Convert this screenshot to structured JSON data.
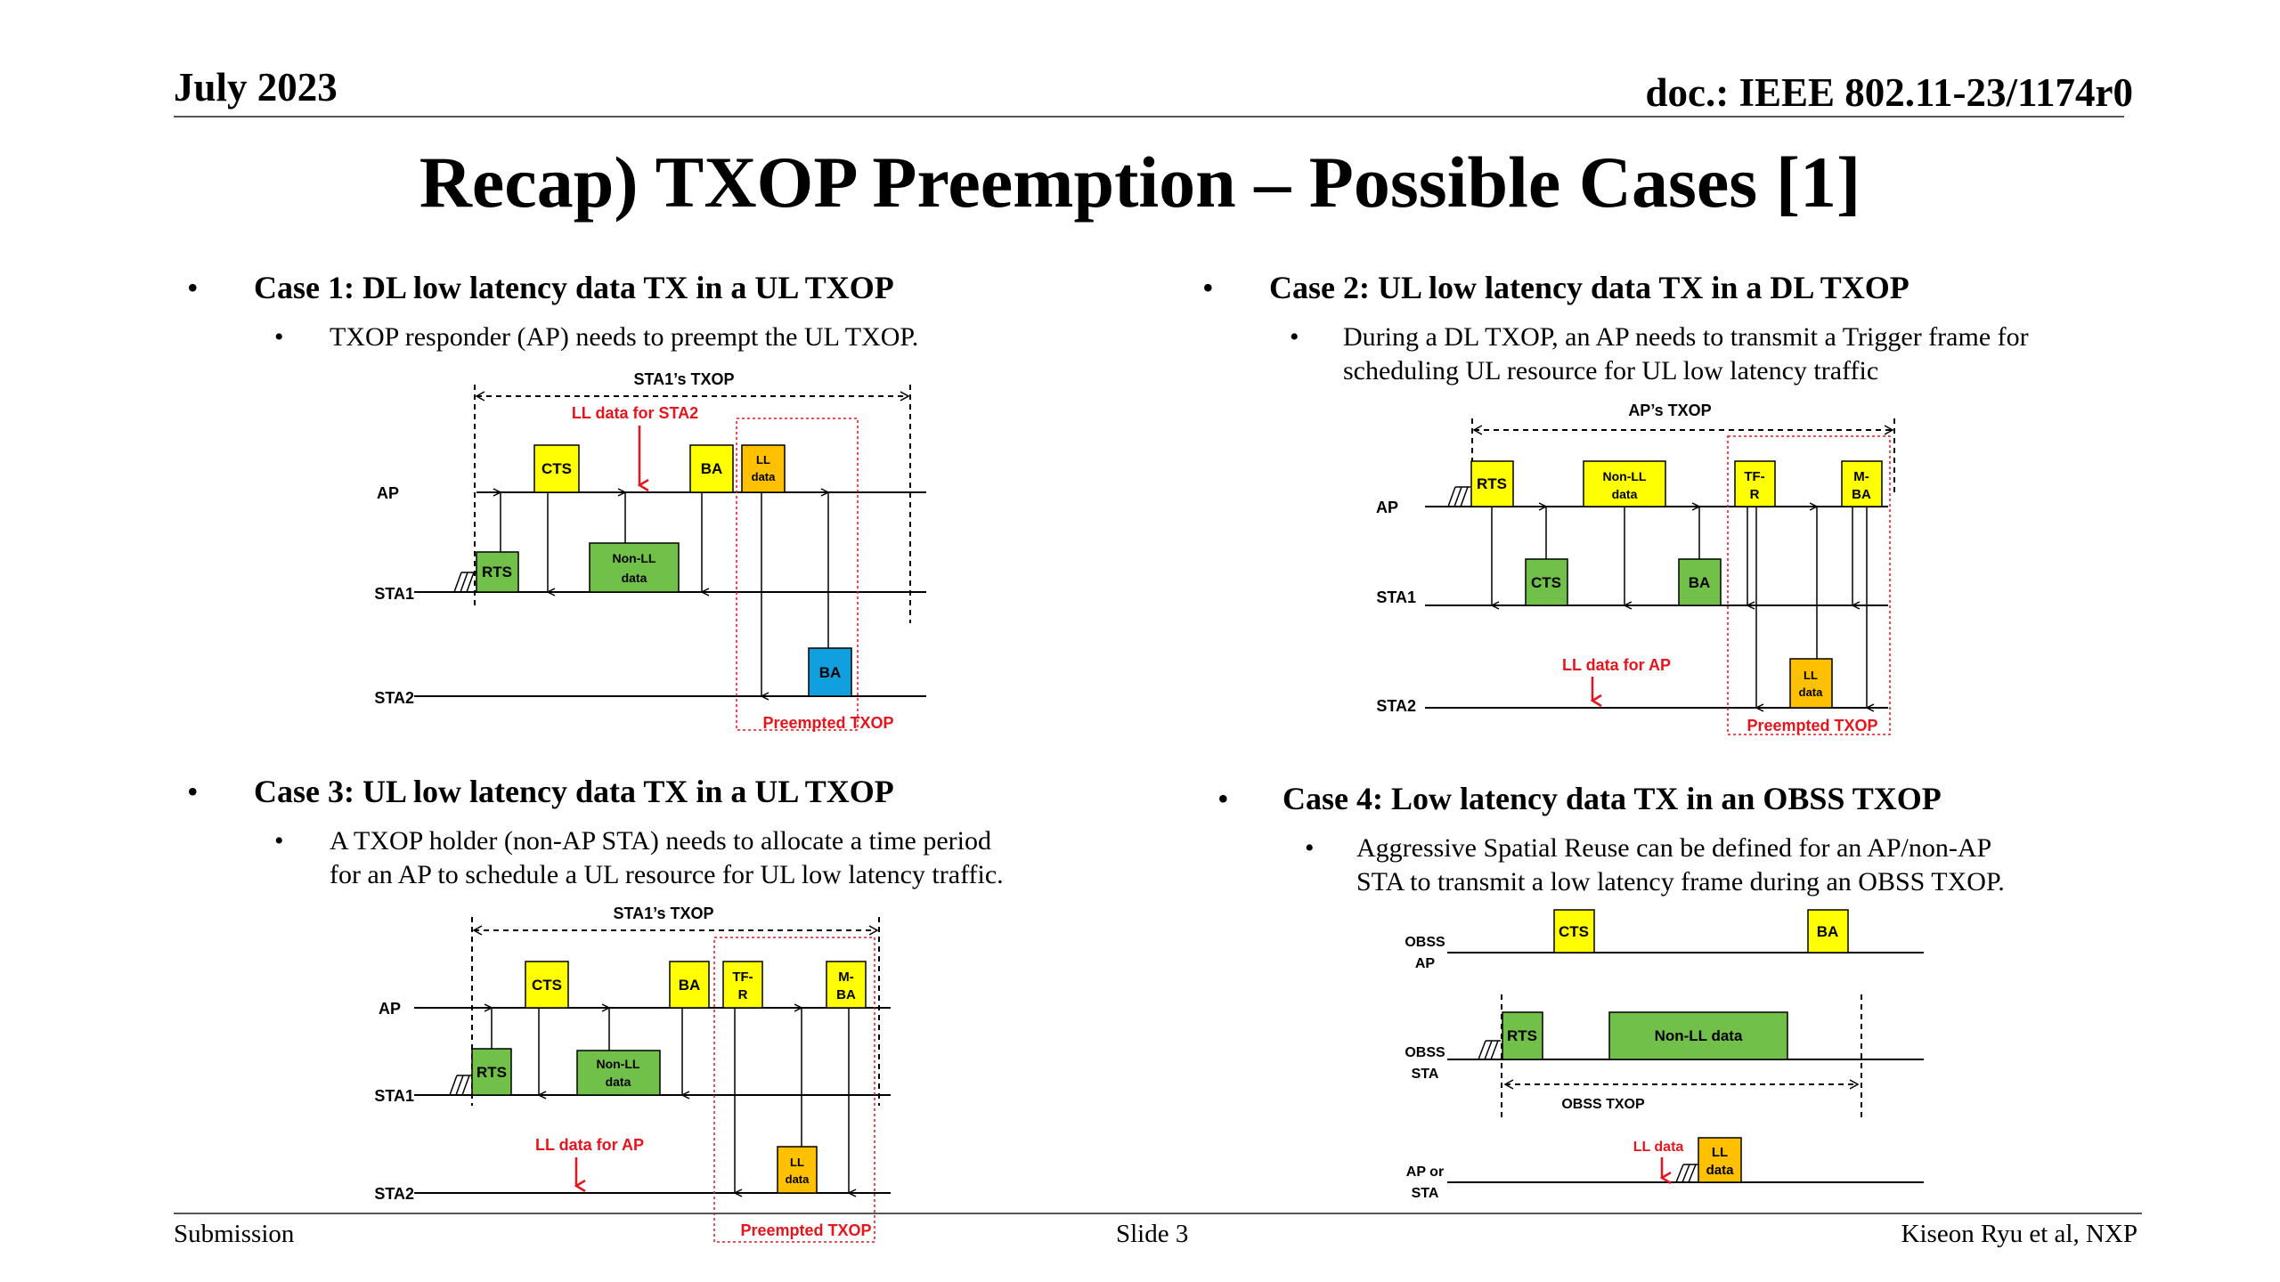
{
  "header": {
    "date": "July 2023",
    "doc": "doc.: IEEE 802.11-23/1174r0"
  },
  "title": "Recap) TXOP Preemption – Possible Cases [1]",
  "cases": [
    {
      "heading": "Case 1: DL low latency data TX in a UL TXOP",
      "sub": [
        "TXOP responder (AP) needs to preempt the UL TXOP."
      ]
    },
    {
      "heading": "Case 2: UL low latency data TX in a DL TXOP",
      "sub": [
        "During a DL TXOP, an AP needs to transmit a Trigger frame for",
        "scheduling UL resource for UL low latency traffic"
      ]
    },
    {
      "heading": "Case 3: UL low latency data TX in a UL TXOP",
      "sub": [
        "A TXOP holder (non-AP STA) needs to allocate a time period",
        "for an AP to schedule a UL resource for UL low latency traffic."
      ]
    },
    {
      "heading": "Case 4: Low latency data TX in an OBSS TXOP",
      "sub": [
        "Aggressive Spatial Reuse can be defined for an AP/non-AP",
        "STA to transmit a low latency frame during an OBSS TXOP."
      ]
    }
  ],
  "diagram1": {
    "txop": "STA1’s TXOP",
    "ll_note": "LL data for STA2",
    "rows": [
      "AP",
      "STA1",
      "STA2"
    ],
    "frames": {
      "cts": "CTS",
      "ba": "BA",
      "ll1": "LL",
      "ll2": "data",
      "rts": "RTS",
      "nonll1": "Non-LL",
      "nonll2": "data",
      "ba2": "BA"
    },
    "preempted": "Preempted TXOP"
  },
  "diagram2": {
    "txop": "AP’s TXOP",
    "ll_note": "LL data for AP",
    "rows": [
      "AP",
      "STA1",
      "STA2"
    ],
    "frames": {
      "rts": "RTS",
      "nonll1": "Non-LL",
      "nonll2": "data",
      "tf1": "TF-",
      "tf2": "R",
      "mba1": "M-",
      "mba2": "BA",
      "cts": "CTS",
      "ba": "BA",
      "ll1": "LL",
      "ll2": "data"
    },
    "preempted": "Preempted TXOP"
  },
  "diagram3": {
    "txop": "STA1’s TXOP",
    "ll_note": "LL data for AP",
    "rows": [
      "AP",
      "STA1",
      "STA2"
    ],
    "frames": {
      "cts": "CTS",
      "ba": "BA",
      "tf1": "TF-",
      "tf2": "R",
      "mba1": "M-",
      "mba2": "BA",
      "rts": "RTS",
      "nonll1": "Non-LL",
      "nonll2": "data",
      "ll1": "LL",
      "ll2": "data"
    },
    "preempted": "Preempted TXOP"
  },
  "diagram4": {
    "rows": [
      "OBSS",
      "AP",
      "OBSS",
      "STA",
      "AP or",
      "STA"
    ],
    "frames": {
      "cts": "CTS",
      "ba": "BA",
      "rts": "RTS",
      "nonll": "Non-LL data",
      "ll1": "LL",
      "ll2": "data"
    },
    "obss_txop": "OBSS TXOP",
    "ll_note": "LL data"
  },
  "footer": {
    "left": "Submission",
    "center": "Slide 3",
    "right": "Kiseon Ryu et al, NXP"
  },
  "colors": {
    "yellow": "#ffff00",
    "green": "#70c04a",
    "orange": "#ffc000",
    "blue": "#10a0e0",
    "red": "#e8141b"
  }
}
